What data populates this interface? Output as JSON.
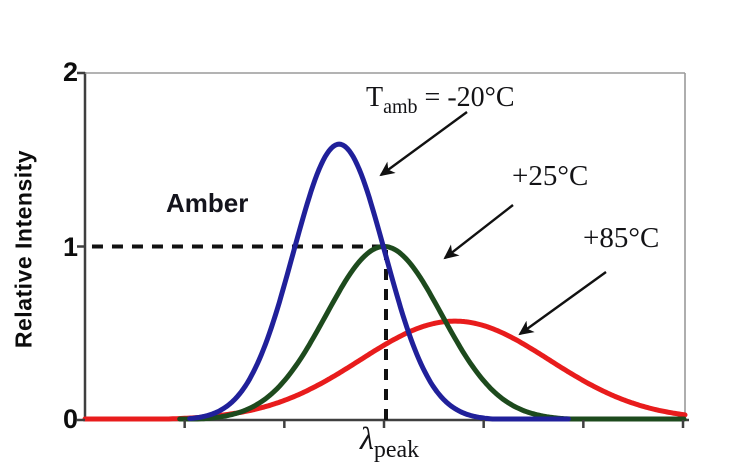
{
  "figure": {
    "background": "#ffffff",
    "description": "LED relative intensity spectra of an Amber LED at three ambient temperatures"
  },
  "chart_data": {
    "type": "line",
    "title": "",
    "xlabel": "",
    "ylabel": "Relative Intensity",
    "ylim": [
      0,
      2
    ],
    "yticks": [
      0,
      1,
      2
    ],
    "ytick_labels": [
      "2",
      "1",
      "0"
    ],
    "xlim": [
      0,
      6.02
    ],
    "xticks": [
      1,
      2,
      3,
      4,
      5,
      6
    ],
    "xtick_labels": [
      "",
      "",
      "λpeak",
      "",
      "",
      ""
    ],
    "grid": false,
    "legend_position": "none (direct arrow annotations)",
    "guides": [
      {
        "type": "horizontal-dashed",
        "y": 1,
        "x_from": 0.07,
        "x_to": 3.02
      },
      {
        "type": "vertical-dashed",
        "x": 3.02,
        "y_from": 0,
        "y_to": 0.98
      }
    ],
    "series": [
      {
        "name": "Tamb = -20°C",
        "color": "#20209a",
        "shape": "gaussian",
        "center": 2.55,
        "sigma": 0.46,
        "peak": 1.59,
        "draw_from": 1.05,
        "draw_to": 4.85,
        "x": [
          1.0,
          1.5,
          2.0,
          2.5,
          3.0,
          3.5,
          4.0,
          4.5,
          5.0,
          5.5,
          6.0
        ],
        "y": [
          0.01,
          0.11,
          0.76,
          1.58,
          1.01,
          0.2,
          0.01,
          0.0,
          0.0,
          0.0,
          0.0
        ]
      },
      {
        "name": "+25°C",
        "color": "#1d4a1d",
        "shape": "gaussian",
        "center": 3.0,
        "sigma": 0.58,
        "peak": 1.0,
        "draw_from": 0.95,
        "draw_to": 6.02,
        "x": [
          1.0,
          1.5,
          2.0,
          2.5,
          3.0,
          3.5,
          4.0,
          4.5,
          5.0,
          5.5,
          6.0
        ],
        "y": [
          0.0,
          0.04,
          0.23,
          0.69,
          1.0,
          0.69,
          0.23,
          0.04,
          0.01,
          0.0,
          0.0
        ]
      },
      {
        "name": "+85°C",
        "color": "#e81c1c",
        "shape": "gaussian",
        "center": 3.71,
        "sigma": 0.95,
        "peak": 0.57,
        "draw_from": 0.0,
        "draw_to": 6.02,
        "x": [
          1.0,
          1.5,
          2.0,
          2.5,
          3.0,
          3.5,
          4.0,
          4.5,
          5.0,
          5.5,
          6.0
        ],
        "y": [
          0.01,
          0.04,
          0.11,
          0.25,
          0.42,
          0.55,
          0.55,
          0.41,
          0.23,
          0.1,
          0.03
        ]
      }
    ]
  },
  "annotations": {
    "amber": "Amber",
    "tamb": {
      "prefix": "T",
      "sub": "amb",
      "rest": " = -20°C"
    },
    "plus25": "+25°C",
    "plus85": "+85°C",
    "lambda": {
      "base": "λ",
      "sub": "peak"
    }
  },
  "colors": {
    "axis_dark": "#3f3f3f",
    "frame_gray": "#9a9a9a",
    "dash_black": "#111111",
    "arrow_black": "#111111"
  }
}
